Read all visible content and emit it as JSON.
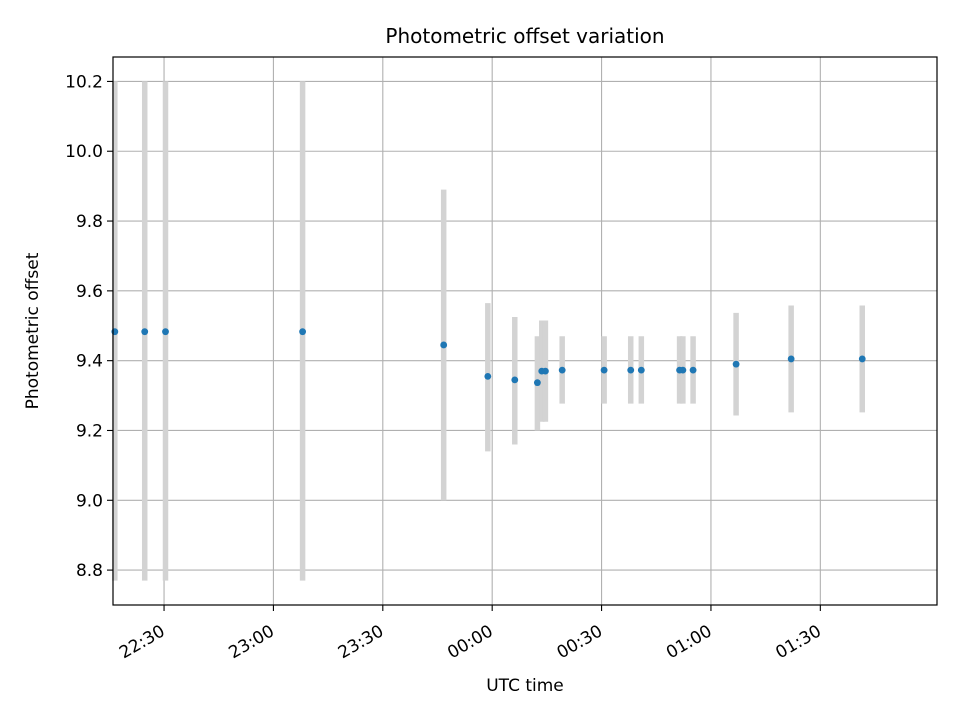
{
  "chart_data": {
    "type": "scatter",
    "title": "Photometric offset variation",
    "xlabel": "UTC time",
    "ylabel": "Photometric offset",
    "xlim_minutes": [
      1336,
      1562
    ],
    "ylim": [
      8.7,
      10.27
    ],
    "x_ticks": [
      {
        "t": 1350,
        "label": "22:30"
      },
      {
        "t": 1380,
        "label": "23:00"
      },
      {
        "t": 1410,
        "label": "23:30"
      },
      {
        "t": 1440,
        "label": "00:00"
      },
      {
        "t": 1470,
        "label": "00:30"
      },
      {
        "t": 1500,
        "label": "01:00"
      },
      {
        "t": 1530,
        "label": "01:30"
      }
    ],
    "y_ticks": [
      8.8,
      9.0,
      9.2,
      9.4,
      9.6,
      9.8,
      10.0,
      10.2
    ],
    "y_tick_labels": [
      "8.8",
      "9.0",
      "9.2",
      "9.4",
      "9.6",
      "9.8",
      "10.0",
      "10.2"
    ],
    "grid": true,
    "marker_color": "#1f77b4",
    "errorbar_color": "#d3d3d3",
    "points": [
      {
        "time": "22:16",
        "t": 1336.5,
        "y": 9.483,
        "ylo": 8.77,
        "yhi": 10.2
      },
      {
        "time": "22:24",
        "t": 1344.7,
        "y": 9.483,
        "ylo": 8.77,
        "yhi": 10.2
      },
      {
        "time": "22:30",
        "t": 1350.4,
        "y": 9.483,
        "ylo": 8.77,
        "yhi": 10.2
      },
      {
        "time": "23:08",
        "t": 1388.0,
        "y": 9.483,
        "ylo": 8.77,
        "yhi": 10.2
      },
      {
        "time": "23:46",
        "t": 1426.7,
        "y": 9.445,
        "ylo": 9.0,
        "yhi": 9.89
      },
      {
        "time": "23:58",
        "t": 1438.8,
        "y": 9.355,
        "ylo": 9.14,
        "yhi": 9.565
      },
      {
        "time": "00:06",
        "t": 1446.2,
        "y": 9.345,
        "ylo": 9.16,
        "yhi": 9.525
      },
      {
        "time": "00:12",
        "t": 1452.4,
        "y": 9.337,
        "ylo": 9.2,
        "yhi": 9.47
      },
      {
        "time": "00:13",
        "t": 1453.6,
        "y": 9.37,
        "ylo": 9.225,
        "yhi": 9.515
      },
      {
        "time": "00:14",
        "t": 1454.6,
        "y": 9.37,
        "ylo": 9.225,
        "yhi": 9.515
      },
      {
        "time": "00:19",
        "t": 1459.2,
        "y": 9.373,
        "ylo": 9.277,
        "yhi": 9.47
      },
      {
        "time": "00:30",
        "t": 1470.7,
        "y": 9.373,
        "ylo": 9.277,
        "yhi": 9.47
      },
      {
        "time": "00:38",
        "t": 1478.0,
        "y": 9.373,
        "ylo": 9.277,
        "yhi": 9.47
      },
      {
        "time": "00:41",
        "t": 1480.9,
        "y": 9.373,
        "ylo": 9.277,
        "yhi": 9.47
      },
      {
        "time": "00:51",
        "t": 1491.4,
        "y": 9.373,
        "ylo": 9.277,
        "yhi": 9.47
      },
      {
        "time": "00:52",
        "t": 1492.3,
        "y": 9.373,
        "ylo": 9.277,
        "yhi": 9.47
      },
      {
        "time": "00:55",
        "t": 1495.1,
        "y": 9.373,
        "ylo": 9.277,
        "yhi": 9.47
      },
      {
        "time": "01:07",
        "t": 1506.9,
        "y": 9.39,
        "ylo": 9.243,
        "yhi": 9.537
      },
      {
        "time": "01:22",
        "t": 1522.0,
        "y": 9.405,
        "ylo": 9.252,
        "yhi": 9.558
      },
      {
        "time": "01:41",
        "t": 1541.5,
        "y": 9.405,
        "ylo": 9.252,
        "yhi": 9.558
      }
    ]
  }
}
